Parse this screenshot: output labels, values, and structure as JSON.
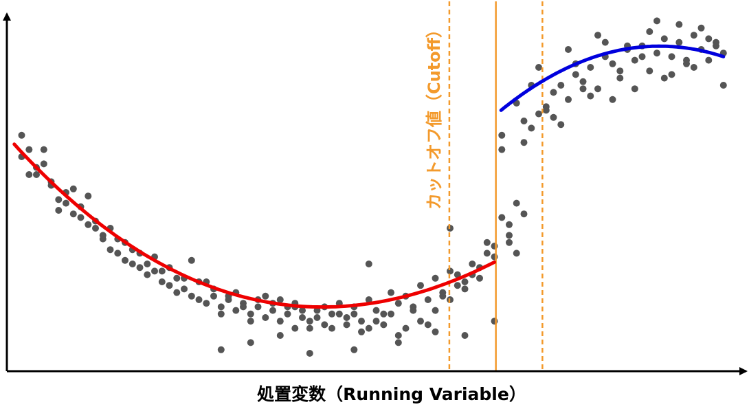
{
  "chart_data": {
    "type": "scatter",
    "title": "",
    "xlabel": "処置変数（Running Variable）",
    "ylabel": "",
    "xlim": [
      0,
      1
    ],
    "ylim": [
      0,
      1
    ],
    "grid": false,
    "cutoff": {
      "label": "カットオフ値（Cutoff）",
      "value": 0.662,
      "band": [
        0.599,
        0.725
      ]
    },
    "colors": {
      "points": "#555555",
      "left_fit": "#ee0000",
      "right_fit": "#0000dd",
      "cutoff": "#f39a2c",
      "axis": "#000000"
    },
    "left_fit": {
      "x": [
        0.01,
        0.2,
        0.44,
        0.66
      ],
      "y": [
        0.635,
        0.31,
        0.18,
        0.305
      ]
    },
    "right_fit": {
      "x": [
        0.669,
        0.85,
        0.97
      ],
      "y": [
        0.73,
        0.905,
        0.88
      ]
    },
    "points": {
      "x": [
        0.02,
        0.03,
        0.04,
        0.05,
        0.06,
        0.07,
        0.08,
        0.09,
        0.1,
        0.11,
        0.12,
        0.13,
        0.14,
        0.15,
        0.16,
        0.17,
        0.18,
        0.19,
        0.2,
        0.21,
        0.22,
        0.23,
        0.24,
        0.25,
        0.26,
        0.27,
        0.28,
        0.29,
        0.3,
        0.31,
        0.32,
        0.33,
        0.34,
        0.35,
        0.36,
        0.37,
        0.38,
        0.39,
        0.4,
        0.41,
        0.42,
        0.43,
        0.44,
        0.45,
        0.46,
        0.47,
        0.48,
        0.49,
        0.5,
        0.51,
        0.52,
        0.53,
        0.54,
        0.55,
        0.56,
        0.57,
        0.58,
        0.59,
        0.6,
        0.61,
        0.62,
        0.63,
        0.64,
        0.65,
        0.66,
        0.02,
        0.04,
        0.06,
        0.08,
        0.1,
        0.12,
        0.14,
        0.16,
        0.18,
        0.2,
        0.22,
        0.24,
        0.26,
        0.28,
        0.3,
        0.32,
        0.34,
        0.36,
        0.38,
        0.4,
        0.42,
        0.44,
        0.46,
        0.48,
        0.5,
        0.52,
        0.54,
        0.56,
        0.58,
        0.6,
        0.62,
        0.64,
        0.66,
        0.03,
        0.07,
        0.11,
        0.15,
        0.19,
        0.23,
        0.27,
        0.31,
        0.35,
        0.39,
        0.43,
        0.47,
        0.51,
        0.55,
        0.59,
        0.63,
        0.05,
        0.09,
        0.13,
        0.17,
        0.21,
        0.25,
        0.29,
        0.33,
        0.37,
        0.41,
        0.45,
        0.49,
        0.53,
        0.57,
        0.61,
        0.65,
        0.33,
        0.37,
        0.39,
        0.41,
        0.47,
        0.29,
        0.53,
        0.58,
        0.62,
        0.66,
        0.6,
        0.49,
        0.67,
        0.68,
        0.69,
        0.68,
        0.7,
        0.71,
        0.72,
        0.73,
        0.74,
        0.75,
        0.76,
        0.77,
        0.78,
        0.79,
        0.8,
        0.81,
        0.82,
        0.83,
        0.84,
        0.85,
        0.86,
        0.87,
        0.88,
        0.89,
        0.9,
        0.91,
        0.92,
        0.93,
        0.94,
        0.95,
        0.96,
        0.97,
        0.67,
        0.69,
        0.71,
        0.73,
        0.75,
        0.77,
        0.79,
        0.81,
        0.83,
        0.85,
        0.87,
        0.89,
        0.91,
        0.93,
        0.95,
        0.97,
        0.7,
        0.74,
        0.78,
        0.82,
        0.86,
        0.9,
        0.94,
        0.72,
        0.76,
        0.8,
        0.84,
        0.88,
        0.92,
        0.96,
        0.69,
        0.7,
        0.67,
        0.68
      ],
      "y": [
        0.66,
        0.62,
        0.55,
        0.58,
        0.52,
        0.48,
        0.47,
        0.44,
        0.43,
        0.41,
        0.4,
        0.37,
        0.34,
        0.33,
        0.31,
        0.3,
        0.29,
        0.27,
        0.28,
        0.25,
        0.24,
        0.22,
        0.23,
        0.21,
        0.2,
        0.19,
        0.21,
        0.18,
        0.2,
        0.17,
        0.19,
        0.16,
        0.18,
        0.15,
        0.17,
        0.14,
        0.16,
        0.18,
        0.15,
        0.14,
        0.17,
        0.13,
        0.16,
        0.19,
        0.15,
        0.18,
        0.14,
        0.2,
        0.17,
        0.16,
        0.22,
        0.19,
        0.21,
        0.18,
        0.24,
        0.2,
        0.26,
        0.22,
        0.28,
        0.27,
        0.25,
        0.3,
        0.29,
        0.33,
        0.32,
        0.6,
        0.57,
        0.53,
        0.5,
        0.46,
        0.42,
        0.4,
        0.36,
        0.33,
        0.32,
        0.29,
        0.26,
        0.25,
        0.23,
        0.21,
        0.18,
        0.2,
        0.19,
        0.18,
        0.17,
        0.15,
        0.12,
        0.13,
        0.11,
        0.14,
        0.16,
        0.12,
        0.14,
        0.17,
        0.2,
        0.23,
        0.26,
        0.35,
        0.55,
        0.45,
        0.49,
        0.37,
        0.3,
        0.26,
        0.25,
        0.22,
        0.21,
        0.19,
        0.18,
        0.16,
        0.13,
        0.17,
        0.21,
        0.27,
        0.62,
        0.51,
        0.38,
        0.34,
        0.28,
        0.31,
        0.16,
        0.14,
        0.2,
        0.12,
        0.16,
        0.12,
        0.1,
        0.13,
        0.24,
        0.36,
        0.08,
        0.1,
        0.12,
        0.05,
        0.06,
        0.06,
        0.08,
        0.11,
        0.1,
        0.14,
        0.4,
        0.3,
        0.62,
        0.38,
        0.33,
        0.36,
        0.7,
        0.68,
        0.72,
        0.74,
        0.78,
        0.8,
        0.76,
        0.83,
        0.81,
        0.85,
        0.79,
        0.88,
        0.86,
        0.82,
        0.9,
        0.87,
        0.91,
        0.84,
        0.89,
        0.93,
        0.88,
        0.92,
        0.86,
        0.94,
        0.9,
        0.87,
        0.91,
        0.89,
        0.66,
        0.75,
        0.8,
        0.73,
        0.69,
        0.86,
        0.77,
        0.92,
        0.84,
        0.79,
        0.95,
        0.82,
        0.97,
        0.85,
        0.93,
        0.8,
        0.64,
        0.71,
        0.79,
        0.76,
        0.88,
        0.83,
        0.96,
        0.85,
        0.9,
        0.94,
        0.91,
        0.98,
        0.87,
        0.92,
        0.47,
        0.44,
        0.43,
        0.41
      ]
    }
  }
}
